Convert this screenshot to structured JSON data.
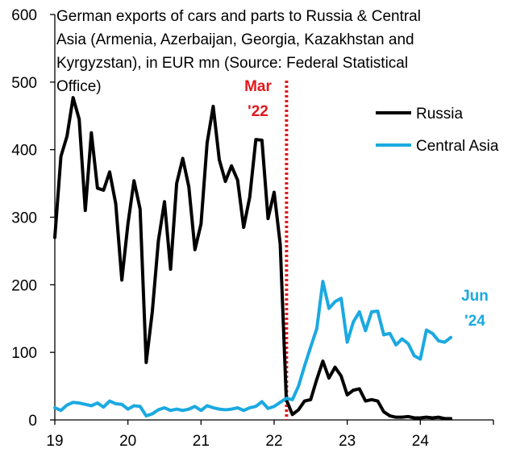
{
  "chart_data": {
    "type": "line",
    "title_lines": [
      "German exports of cars and parts to Russia & Central",
      "Asia (Armenia, Azerbaijan, Georgia, Kazakhstan and",
      "Kyrgyzstan), in EUR mn (Source: Federal Statistical",
      "Office)"
    ],
    "xlabel": "",
    "ylabel": "",
    "xlim": [
      2019,
      2025
    ],
    "ylim": [
      0,
      600
    ],
    "x_ticks": [
      2019,
      2020,
      2021,
      2022,
      2023,
      2024,
      2025
    ],
    "x_tick_labels": [
      "19",
      "20",
      "21",
      "22",
      "23",
      "24",
      ""
    ],
    "y_ticks": [
      0,
      100,
      200,
      300,
      400,
      500,
      600
    ],
    "y_tick_labels": [
      "0",
      "100",
      "200",
      "300",
      "400",
      "500",
      "600"
    ],
    "grid": false,
    "legend_position": "top-right",
    "series": [
      {
        "name": "Russia",
        "color": "#000000",
        "start": 2019,
        "step_months": 1,
        "values": [
          270,
          390,
          420,
          477,
          445,
          310,
          425,
          343,
          340,
          367,
          320,
          207,
          290,
          354,
          312,
          85,
          160,
          265,
          323,
          223,
          350,
          387,
          345,
          252,
          290,
          410,
          464,
          385,
          353,
          376,
          355,
          285,
          330,
          415,
          414,
          298,
          337,
          260,
          30,
          8,
          15,
          28,
          30,
          60,
          87,
          62,
          78,
          65,
          37,
          44,
          46,
          28,
          30,
          28,
          12,
          6,
          4,
          4,
          5,
          3,
          3,
          4,
          3,
          4,
          2,
          2
        ]
      },
      {
        "name": "Central Asia",
        "color": "#1ba9e1",
        "start": 2019,
        "step_months": 1,
        "values": [
          18,
          14,
          22,
          26,
          25,
          23,
          21,
          25,
          19,
          28,
          24,
          23,
          16,
          21,
          20,
          6,
          9,
          15,
          18,
          14,
          16,
          14,
          16,
          20,
          14,
          21,
          18,
          16,
          15,
          16,
          18,
          14,
          18,
          20,
          27,
          17,
          20,
          26,
          32,
          30,
          50,
          80,
          108,
          135,
          205,
          165,
          175,
          180,
          115,
          145,
          160,
          132,
          160,
          161,
          126,
          128,
          111,
          120,
          113,
          95,
          90,
          133,
          128,
          117,
          115,
          122
        ]
      }
    ],
    "annotations": [
      {
        "text_lines": [
          "Mar",
          "'22"
        ],
        "x": 2022.17,
        "color": "#e0191e",
        "style": "dotted-vertical-line"
      },
      {
        "text_lines": [
          "Jun",
          "'24"
        ],
        "x": 2024.42,
        "color": "#1ba9e1",
        "style": "label"
      }
    ]
  }
}
